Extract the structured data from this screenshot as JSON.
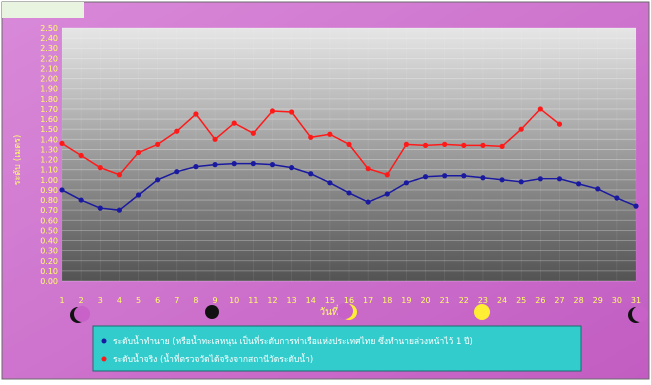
{
  "chart_data": {
    "type": "line",
    "title": "",
    "xlabel": "วันที่",
    "ylabel": "ระดับ (เมตร)",
    "ylim": [
      0,
      2.5
    ],
    "yticks": [
      "0.00",
      "0.10",
      "0.20",
      "0.30",
      "0.40",
      "0.50",
      "0.60",
      "0.70",
      "0.80",
      "0.90",
      "1.00",
      "1.10",
      "1.20",
      "1.30",
      "1.40",
      "1.50",
      "1.60",
      "1.70",
      "1.80",
      "1.90",
      "2.00",
      "2.10",
      "2.20",
      "2.30",
      "2.40",
      "2.50"
    ],
    "x": [
      1,
      2,
      3,
      4,
      5,
      6,
      7,
      8,
      9,
      10,
      11,
      12,
      13,
      14,
      15,
      16,
      17,
      18,
      19,
      20,
      21,
      22,
      23,
      24,
      25,
      26,
      27,
      28,
      29,
      30,
      31
    ],
    "grid": true,
    "legend_position": "bottom",
    "series": [
      {
        "name": "ระดับน้ำทำนาย (หรือน้ำทะเลหนุน เป็นที่ระดับการท่าเรือแห่งประเทศไทย ซึ่งทำนายล่วงหน้าไว้ 1 ปี)",
        "color": "#1a1aa0",
        "values": [
          0.9,
          0.8,
          0.72,
          0.7,
          0.85,
          1.0,
          1.08,
          1.13,
          1.15,
          1.16,
          1.16,
          1.15,
          1.12,
          1.06,
          0.97,
          0.87,
          0.78,
          0.86,
          0.97,
          1.03,
          1.04,
          1.04,
          1.02,
          1.0,
          0.98,
          1.01,
          1.01,
          0.96,
          0.91,
          0.82,
          0.74
        ]
      },
      {
        "name": "ระดับน้ำจริง (น้ำที่ตรวจวัดได้จริงจากสถานีวัดระดับน้ำ)",
        "color": "#ff1a1a",
        "values": [
          1.36,
          1.24,
          1.12,
          1.05,
          1.27,
          1.35,
          1.48,
          1.65,
          1.4,
          1.56,
          1.46,
          1.68,
          1.67,
          1.42,
          1.45,
          1.35,
          1.11,
          1.05,
          1.35,
          1.34,
          1.35,
          1.34,
          1.34,
          1.33,
          1.5,
          1.7,
          1.55,
          null,
          null,
          null,
          null
        ]
      }
    ]
  },
  "moon_phases": [
    "waning-crescent-moon-icon",
    "new-moon-icon",
    "first-quarter-moon-icon",
    "full-moon-icon",
    "waning-crescent-moon-icon"
  ],
  "colors": {
    "frame": "#cc66cc",
    "plot_top": "#e6e6e6",
    "plot_bottom": "#555555",
    "axis_text": "#ffff66",
    "legend_bg": "#33cccc"
  }
}
